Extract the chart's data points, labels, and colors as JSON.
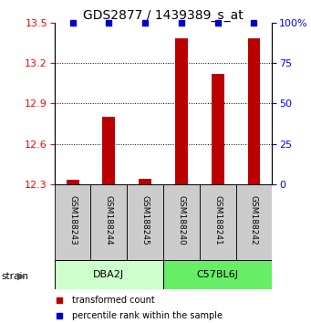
{
  "title": "GDS2877 / 1439389_s_at",
  "samples": [
    "GSM188243",
    "GSM188244",
    "GSM188245",
    "GSM188240",
    "GSM188241",
    "GSM188242"
  ],
  "group_labels": [
    "DBA2J",
    "C57BL6J"
  ],
  "group_colors": [
    "#ccffcc",
    "#66ee66"
  ],
  "red_values": [
    12.33,
    12.8,
    12.34,
    13.38,
    13.12,
    13.38
  ],
  "blue_values": [
    100,
    100,
    100,
    100,
    100,
    100
  ],
  "ylim_left": [
    12.3,
    13.5
  ],
  "ylim_right": [
    0,
    100
  ],
  "yticks_left": [
    12.3,
    12.6,
    12.9,
    13.2,
    13.5
  ],
  "yticks_right": [
    0,
    25,
    50,
    75,
    100
  ],
  "bar_color": "#bb0000",
  "dot_color": "#0000cc",
  "sample_box_color": "#cccccc",
  "title_fontsize": 10,
  "tick_fontsize": 8,
  "bar_width": 0.35
}
